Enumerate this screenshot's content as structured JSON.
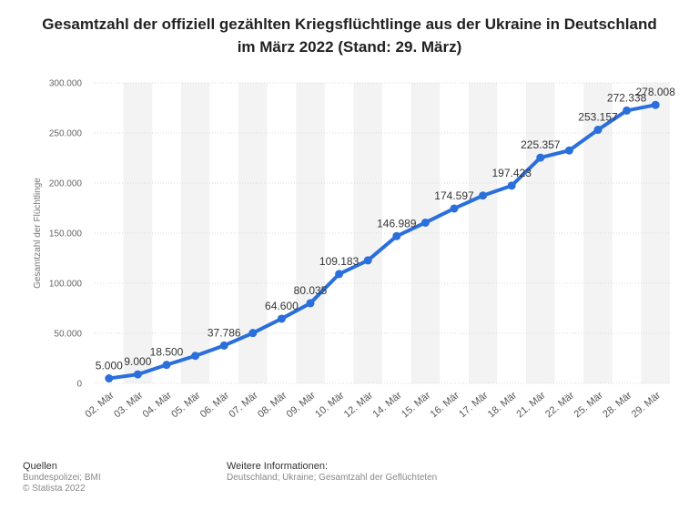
{
  "chart_data": {
    "type": "line",
    "title_line1": "Gesamtzahl der offiziell gezählten Kriegsflüchtlinge aus der Ukraine in Deutschland",
    "title_line2": "im März 2022 (Stand: 29. März)",
    "xlabel": "",
    "ylabel": "Gesamtzahl der Flüchtlinge",
    "ylim": [
      0,
      300000
    ],
    "yticks": [
      0,
      50000,
      100000,
      150000,
      200000,
      250000,
      300000
    ],
    "ytick_labels": [
      "0",
      "50.000",
      "100.000",
      "150.000",
      "200.000",
      "250.000",
      "300.000"
    ],
    "grid": true,
    "line_color": "#2a6fdb",
    "categories": [
      "02. Mär",
      "03. Mär",
      "04. Mär",
      "05. Mär",
      "06. Mär",
      "07. Mär",
      "08. Mär",
      "09. Mär",
      "10. Mär",
      "12. Mär",
      "14. Mär",
      "15. Mär",
      "16. Mär",
      "17. Mär",
      "18. Mär",
      "21. Mär",
      "22. Mär",
      "25. Mär",
      "28. Mär",
      "29. Mär"
    ],
    "values": [
      5000,
      9000,
      18500,
      27500,
      37786,
      50300,
      64600,
      80035,
      109183,
      122800,
      146989,
      160500,
      174597,
      187500,
      197423,
      225357,
      232500,
      253157,
      272338,
      278008
    ],
    "data_labels": [
      {
        "index": 0,
        "text": "5.000"
      },
      {
        "index": 1,
        "text": "9.000"
      },
      {
        "index": 2,
        "text": "18.500"
      },
      {
        "index": 4,
        "text": "37.786"
      },
      {
        "index": 6,
        "text": "64.600"
      },
      {
        "index": 7,
        "text": "80.035"
      },
      {
        "index": 8,
        "text": "109.183"
      },
      {
        "index": 10,
        "text": "146.989"
      },
      {
        "index": 12,
        "text": "174.597"
      },
      {
        "index": 14,
        "text": "197.423"
      },
      {
        "index": 15,
        "text": "225.357"
      },
      {
        "index": 17,
        "text": "253.157"
      },
      {
        "index": 18,
        "text": "272.338"
      },
      {
        "index": 19,
        "text": "278.008"
      }
    ]
  },
  "footer": {
    "sources_heading": "Quellen",
    "sources_line1": "Bundespolizei; BMI",
    "sources_line2": "© Statista 2022",
    "info_heading": "Weitere Informationen:",
    "info_text": "Deutschland; Ukraine; Gesamtzahl der Geflüchteten"
  }
}
